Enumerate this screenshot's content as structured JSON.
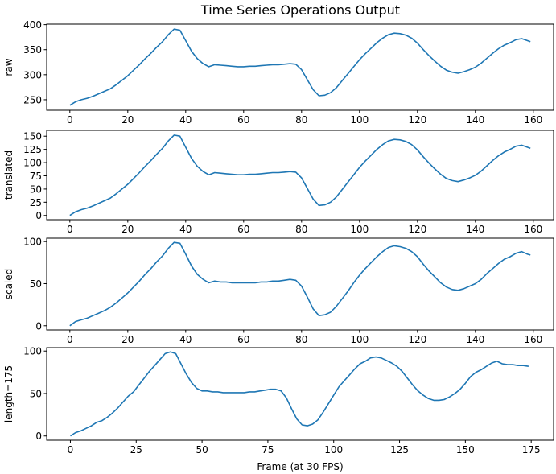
{
  "figure_title": "Time Series Operations Output",
  "line_color": "#1f77b4",
  "chart_data": [
    {
      "type": "line",
      "ylabel": "raw",
      "xlabel": "",
      "xlim": [
        -8,
        167
      ],
      "ylim": [
        229,
        401
      ],
      "xticks": [
        0,
        20,
        40,
        60,
        80,
        100,
        120,
        140,
        160
      ],
      "yticks": [
        250,
        300,
        350,
        400
      ],
      "x": [
        0,
        2,
        4,
        6,
        8,
        10,
        12,
        14,
        16,
        18,
        20,
        22,
        24,
        26,
        28,
        30,
        32,
        34,
        36,
        38,
        40,
        42,
        44,
        46,
        48,
        50,
        52,
        54,
        56,
        58,
        60,
        62,
        64,
        66,
        68,
        70,
        72,
        74,
        76,
        78,
        80,
        82,
        84,
        86,
        88,
        90,
        92,
        94,
        96,
        98,
        100,
        102,
        104,
        106,
        108,
        110,
        112,
        114,
        116,
        118,
        120,
        122,
        124,
        126,
        128,
        130,
        132,
        134,
        136,
        138,
        140,
        142,
        144,
        146,
        148,
        150,
        152,
        154,
        156,
        158,
        159
      ],
      "y": [
        239,
        246,
        250,
        253,
        257,
        262,
        267,
        272,
        280,
        289,
        298,
        309,
        320,
        332,
        343,
        355,
        366,
        380,
        391,
        389,
        368,
        347,
        332,
        322,
        316,
        320,
        319,
        318,
        317,
        316,
        316,
        317,
        317,
        318,
        319,
        320,
        320,
        321,
        322,
        321,
        310,
        290,
        270,
        258,
        259,
        264,
        274,
        288,
        302,
        316,
        330,
        342,
        353,
        364,
        373,
        380,
        383,
        382,
        379,
        373,
        363,
        350,
        338,
        327,
        317,
        309,
        305,
        303,
        306,
        310,
        315,
        323,
        333,
        343,
        352,
        359,
        364,
        370,
        372,
        368,
        366
      ]
    },
    {
      "type": "line",
      "ylabel": "translated",
      "xlabel": "",
      "xlim": [
        -8,
        167
      ],
      "ylim": [
        -8,
        161
      ],
      "xticks": [
        0,
        20,
        40,
        60,
        80,
        100,
        120,
        140,
        160
      ],
      "yticks": [
        0,
        25,
        50,
        75,
        100,
        125,
        150
      ],
      "x": [
        0,
        2,
        4,
        6,
        8,
        10,
        12,
        14,
        16,
        18,
        20,
        22,
        24,
        26,
        28,
        30,
        32,
        34,
        36,
        38,
        40,
        42,
        44,
        46,
        48,
        50,
        52,
        54,
        56,
        58,
        60,
        62,
        64,
        66,
        68,
        70,
        72,
        74,
        76,
        78,
        80,
        82,
        84,
        86,
        88,
        90,
        92,
        94,
        96,
        98,
        100,
        102,
        104,
        106,
        108,
        110,
        112,
        114,
        116,
        118,
        120,
        122,
        124,
        126,
        128,
        130,
        132,
        134,
        136,
        138,
        140,
        142,
        144,
        146,
        148,
        150,
        152,
        154,
        156,
        158,
        159
      ],
      "y": [
        0,
        7,
        11,
        14,
        18,
        23,
        28,
        33,
        41,
        50,
        59,
        70,
        81,
        93,
        104,
        116,
        127,
        141,
        152,
        150,
        129,
        108,
        93,
        83,
        77,
        81,
        80,
        79,
        78,
        77,
        77,
        78,
        78,
        79,
        80,
        81,
        81,
        82,
        83,
        82,
        71,
        51,
        31,
        19,
        20,
        25,
        35,
        49,
        63,
        77,
        91,
        103,
        114,
        125,
        134,
        141,
        144,
        143,
        140,
        134,
        124,
        111,
        99,
        88,
        78,
        70,
        66,
        64,
        67,
        71,
        76,
        84,
        94,
        104,
        113,
        120,
        125,
        131,
        133,
        129,
        127
      ]
    },
    {
      "type": "line",
      "ylabel": "scaled",
      "xlabel": "",
      "xlim": [
        -8,
        167
      ],
      "ylim": [
        -5,
        104
      ],
      "xticks": [
        0,
        20,
        40,
        60,
        80,
        100,
        120,
        140,
        160
      ],
      "yticks": [
        0,
        50,
        100
      ],
      "x": [
        0,
        2,
        4,
        6,
        8,
        10,
        12,
        14,
        16,
        18,
        20,
        22,
        24,
        26,
        28,
        30,
        32,
        34,
        36,
        38,
        40,
        42,
        44,
        46,
        48,
        50,
        52,
        54,
        56,
        58,
        60,
        62,
        64,
        66,
        68,
        70,
        72,
        74,
        76,
        78,
        80,
        82,
        84,
        86,
        88,
        90,
        92,
        94,
        96,
        98,
        100,
        102,
        104,
        106,
        108,
        110,
        112,
        114,
        116,
        118,
        120,
        122,
        124,
        126,
        128,
        130,
        132,
        134,
        136,
        138,
        140,
        142,
        144,
        146,
        148,
        150,
        152,
        154,
        156,
        158,
        159
      ],
      "y": [
        0,
        5,
        7,
        9,
        12,
        15,
        18,
        22,
        27,
        33,
        39,
        46,
        53,
        61,
        68,
        76,
        83,
        92,
        99,
        98,
        85,
        71,
        61,
        55,
        51,
        53,
        52,
        52,
        51,
        51,
        51,
        51,
        51,
        52,
        52,
        53,
        53,
        54,
        55,
        54,
        47,
        34,
        20,
        12,
        13,
        16,
        23,
        32,
        41,
        51,
        60,
        68,
        75,
        82,
        88,
        93,
        95,
        94,
        92,
        88,
        82,
        73,
        65,
        58,
        51,
        46,
        43,
        42,
        44,
        47,
        50,
        55,
        62,
        68,
        74,
        79,
        82,
        86,
        88,
        85,
        84
      ]
    },
    {
      "type": "line",
      "ylabel": "length=175",
      "xlabel": "Frame (at 30 FPS)",
      "xlim": [
        -9,
        183.5
      ],
      "ylim": [
        -5,
        104
      ],
      "xticks": [
        0,
        25,
        50,
        75,
        100,
        125,
        150,
        175
      ],
      "yticks": [
        0,
        50,
        100
      ],
      "x": [
        0,
        2,
        4,
        6,
        8,
        10,
        12,
        14,
        16,
        18,
        20,
        22,
        24,
        26,
        28,
        30,
        32,
        34,
        36,
        38,
        40,
        42,
        44,
        46,
        48,
        50,
        52,
        54,
        56,
        58,
        60,
        62,
        64,
        66,
        68,
        70,
        72,
        74,
        76,
        78,
        80,
        82,
        84,
        86,
        88,
        90,
        92,
        94,
        96,
        98,
        100,
        102,
        104,
        106,
        108,
        110,
        112,
        114,
        116,
        118,
        120,
        122,
        124,
        126,
        128,
        130,
        132,
        134,
        136,
        138,
        140,
        142,
        144,
        146,
        148,
        150,
        152,
        154,
        156,
        158,
        160,
        162,
        164,
        166,
        168,
        170,
        172,
        174
      ],
      "y": [
        0,
        4,
        6,
        9,
        12,
        16,
        18,
        22,
        27,
        33,
        40,
        47,
        52,
        60,
        68,
        76,
        83,
        90,
        97,
        99,
        97,
        85,
        73,
        63,
        56,
        53,
        53,
        52,
        52,
        51,
        51,
        51,
        51,
        51,
        52,
        52,
        53,
        54,
        55,
        55,
        53,
        45,
        32,
        20,
        13,
        12,
        14,
        19,
        28,
        38,
        48,
        58,
        65,
        72,
        79,
        85,
        88,
        92,
        93,
        92,
        89,
        86,
        82,
        76,
        68,
        60,
        53,
        48,
        44,
        42,
        42,
        43,
        46,
        50,
        55,
        62,
        70,
        75,
        78,
        82,
        86,
        88,
        85,
        84,
        84,
        83,
        83,
        82
      ]
    }
  ]
}
